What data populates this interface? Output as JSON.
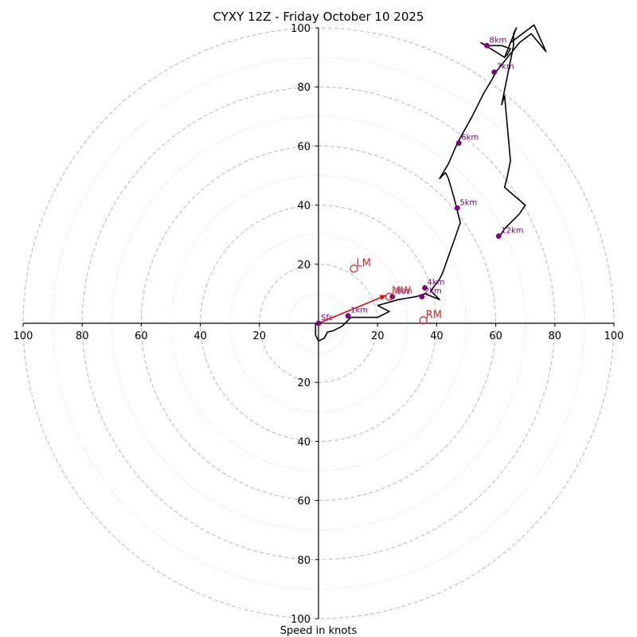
{
  "chart_data": {
    "type": "hodograph",
    "title": "CYXY 12Z - Friday October 10 2025",
    "xlabel": "Speed in knots",
    "ylabel": "",
    "xlim": [
      -100,
      100
    ],
    "ylim": [
      -100,
      100
    ],
    "major_rings": [
      20,
      40,
      60,
      80,
      100
    ],
    "minor_rings": [
      10,
      30,
      50,
      70,
      90
    ],
    "x_ticks": [
      {
        "value": -100,
        "label": "100"
      },
      {
        "value": -80,
        "label": "80"
      },
      {
        "value": -60,
        "label": "60"
      },
      {
        "value": -40,
        "label": "40"
      },
      {
        "value": -20,
        "label": "20"
      },
      {
        "value": 20,
        "label": "20"
      },
      {
        "value": 40,
        "label": "40"
      },
      {
        "value": 60,
        "label": "60"
      },
      {
        "value": 80,
        "label": "80"
      },
      {
        "value": 100,
        "label": "100"
      }
    ],
    "y_ticks": [
      {
        "value": 100,
        "label": "100"
      },
      {
        "value": 80,
        "label": "80"
      },
      {
        "value": 60,
        "label": "60"
      },
      {
        "value": 40,
        "label": "40"
      },
      {
        "value": 20,
        "label": "20"
      },
      {
        "value": -20,
        "label": "20"
      },
      {
        "value": -40,
        "label": "40"
      },
      {
        "value": -60,
        "label": "60"
      },
      {
        "value": -80,
        "label": "80"
      },
      {
        "value": -100,
        "label": "100"
      }
    ],
    "trace": [
      [
        -1,
        0
      ],
      [
        -1,
        -4
      ],
      [
        0,
        -6
      ],
      [
        2,
        -5
      ],
      [
        3,
        -3
      ],
      [
        5,
        -2.5
      ],
      [
        6,
        -2
      ],
      [
        8,
        -1
      ],
      [
        9,
        0
      ],
      [
        10,
        1
      ],
      [
        11,
        2
      ],
      [
        20,
        2
      ],
      [
        24,
        4
      ],
      [
        20,
        6
      ],
      [
        27,
        8
      ],
      [
        33,
        9
      ],
      [
        36,
        10
      ],
      [
        41,
        8
      ],
      [
        38,
        11
      ],
      [
        41,
        15
      ],
      [
        42,
        17
      ],
      [
        48,
        34
      ],
      [
        46,
        42
      ],
      [
        44,
        49
      ],
      [
        43,
        51
      ],
      [
        41,
        49
      ],
      [
        44,
        54
      ],
      [
        47,
        61
      ],
      [
        52,
        70
      ],
      [
        56,
        78
      ],
      [
        59,
        83
      ],
      [
        60,
        85
      ],
      [
        64,
        90
      ],
      [
        68,
        95
      ],
      [
        72,
        98
      ],
      [
        77,
        92
      ],
      [
        73,
        101
      ],
      [
        65,
        95
      ],
      [
        63,
        90
      ],
      [
        64,
        91
      ],
      [
        65,
        93
      ],
      [
        62,
        94
      ],
      [
        57,
        94
      ],
      [
        55,
        95
      ],
      [
        63,
        90
      ],
      [
        65,
        95
      ],
      [
        67,
        100
      ],
      [
        66,
        98
      ],
      [
        66,
        94
      ],
      [
        62,
        74
      ],
      [
        63,
        77
      ],
      [
        65,
        55
      ],
      [
        64,
        50
      ],
      [
        63,
        46
      ],
      [
        70,
        40
      ],
      [
        68,
        37
      ],
      [
        66,
        35
      ],
      [
        63,
        32
      ],
      [
        61,
        29
      ]
    ],
    "height_markers": [
      {
        "label": "Sfc",
        "x": 0,
        "y": 0
      },
      {
        "label": "1km",
        "x": 10,
        "y": 2.5
      },
      {
        "label": "3km",
        "x": 25,
        "y": 9
      },
      {
        "label": "2km",
        "x": 35,
        "y": 9
      },
      {
        "label": "4km",
        "x": 36,
        "y": 12
      },
      {
        "label": "5km",
        "x": 47,
        "y": 39
      },
      {
        "label": "6km",
        "x": 47.5,
        "y": 61
      },
      {
        "label": "7km",
        "x": 59.5,
        "y": 85
      },
      {
        "label": "8km",
        "x": 57,
        "y": 94
      },
      {
        "label": "12km",
        "x": 61,
        "y": 29.5
      }
    ],
    "storm_motions": [
      {
        "label": "LM",
        "x": 12,
        "y": 18.5
      },
      {
        "label": "MW",
        "x": 24,
        "y": 9
      },
      {
        "label": "RM",
        "x": 35.5,
        "y": 1
      }
    ],
    "arrow": {
      "from": [
        0,
        0
      ],
      "to": [
        23,
        9.5
      ]
    },
    "colors": {
      "trace": "#000000",
      "marker": "#800080",
      "motion": "#d62728",
      "arrow": "#ff0000",
      "major_grid": "#bfbfbf",
      "minor_grid": "#cccccc"
    }
  }
}
